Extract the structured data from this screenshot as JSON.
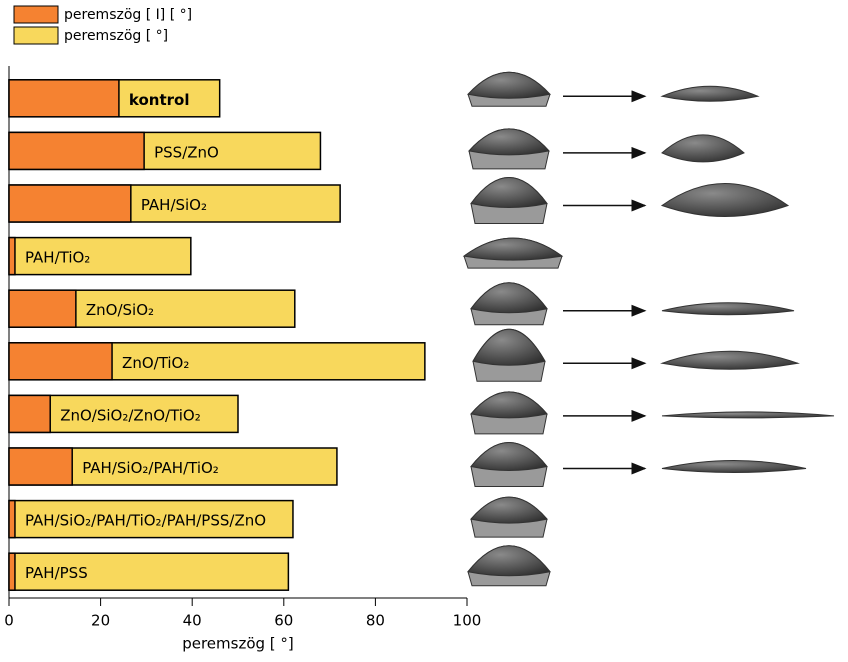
{
  "chart_data": {
    "type": "bar",
    "orientation": "horizontal",
    "categories": [
      "kontrol",
      "PSS/ZnO",
      "PAH/SiO₂",
      "PAH/TiO₂",
      "ZnO/SiO₂",
      "ZnO/TiO₂",
      "ZnO/SiO₂/ZnO/TiO₂",
      "PAH/SiO₂/PAH/TiO₂",
      "PAH/SiO₂/PAH/TiO₂/PAH/PSS/ZnO",
      "PAH/PSS"
    ],
    "series": [
      {
        "name": "peremszög  [ I] [ °]",
        "color": "#f58231",
        "values": [
          24,
          29.5,
          26.6,
          1.3,
          14.6,
          22.5,
          9,
          13.8,
          1.3,
          1.3
        ]
      },
      {
        "name": "peremszög [ °]",
        "color": "#f8d85c",
        "values": [
          46,
          68,
          72.3,
          39.7,
          62.4,
          90.8,
          50,
          71.6,
          62,
          61
        ]
      }
    ],
    "xlabel": "peremszög [ °]",
    "xlim": [
      0,
      100
    ],
    "xticks": [
      0,
      20,
      40,
      60,
      80,
      100
    ],
    "legend": "top-left"
  }
}
